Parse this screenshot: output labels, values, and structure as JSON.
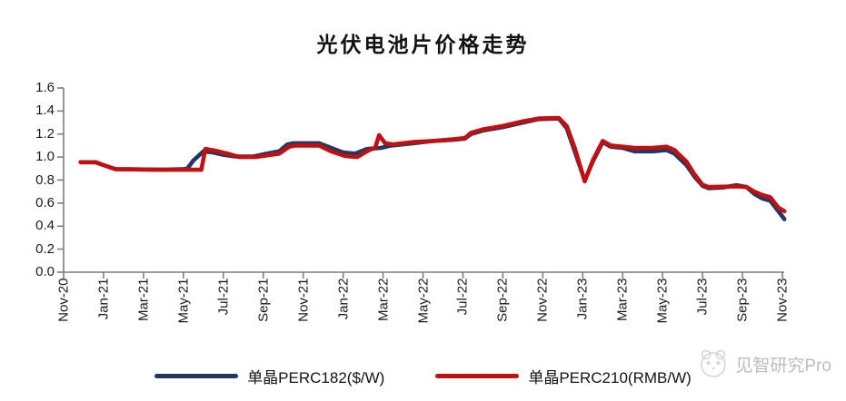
{
  "chart": {
    "title": "光伏电池片价格走势",
    "watermark": {
      "brand": "见智研究Pro",
      "logo": "panda-face-logo"
    }
  },
  "chart_data": {
    "type": "line",
    "title": "光伏电池片价格走势",
    "xlabel": "",
    "ylabel": "",
    "ylim": [
      0.0,
      1.6
    ],
    "y_tick_step": 0.2,
    "y_tick_labels": [
      "0.0",
      "0.2",
      "0.4",
      "0.6",
      "0.8",
      "1.0",
      "1.2",
      "1.4",
      "1.6"
    ],
    "x_tick_labels": [
      "Nov-20",
      "Jan-21",
      "Mar-21",
      "May-21",
      "Jul-21",
      "Sep-21",
      "Nov-21",
      "Jan-22",
      "Mar-22",
      "May-22",
      "Jul-22",
      "Sep-22",
      "Nov-22",
      "Jan-23",
      "Mar-23",
      "May-23",
      "Jul-23",
      "Sep-23",
      "Nov-23"
    ],
    "x_unit": "months_since_Nov-20",
    "x_range": [
      0,
      36
    ],
    "grid": false,
    "legend_position": "bottom",
    "series": [
      {
        "name": "单晶PERC182($/W)",
        "color": "#1f3864",
        "points": [
          [
            0.85,
            0.955
          ],
          [
            1.6,
            0.955
          ],
          [
            2.0,
            0.93
          ],
          [
            2.6,
            0.895
          ],
          [
            5.0,
            0.89
          ],
          [
            6.0,
            0.895
          ],
          [
            6.2,
            0.9
          ],
          [
            6.5,
            0.97
          ],
          [
            7.0,
            1.05
          ],
          [
            7.5,
            1.04
          ],
          [
            8.0,
            1.02
          ],
          [
            8.6,
            1.005
          ],
          [
            9.5,
            1.005
          ],
          [
            10.2,
            1.03
          ],
          [
            10.8,
            1.05
          ],
          [
            11.2,
            1.11
          ],
          [
            11.5,
            1.12
          ],
          [
            12.8,
            1.12
          ],
          [
            13.4,
            1.08
          ],
          [
            14.0,
            1.04
          ],
          [
            14.6,
            1.03
          ],
          [
            15.2,
            1.07
          ],
          [
            15.9,
            1.08
          ],
          [
            16.4,
            1.1
          ],
          [
            17.5,
            1.12
          ],
          [
            18.5,
            1.14
          ],
          [
            19.5,
            1.15
          ],
          [
            20.1,
            1.16
          ],
          [
            20.4,
            1.2
          ],
          [
            21.0,
            1.23
          ],
          [
            22.0,
            1.26
          ],
          [
            23.0,
            1.3
          ],
          [
            23.8,
            1.33
          ],
          [
            24.8,
            1.335
          ],
          [
            25.2,
            1.25
          ],
          [
            25.6,
            1.05
          ],
          [
            26.1,
            0.795
          ],
          [
            26.5,
            0.96
          ],
          [
            27.0,
            1.13
          ],
          [
            27.4,
            1.09
          ],
          [
            28.0,
            1.08
          ],
          [
            28.6,
            1.05
          ],
          [
            29.5,
            1.05
          ],
          [
            30.2,
            1.06
          ],
          [
            30.6,
            1.03
          ],
          [
            30.9,
            0.98
          ],
          [
            31.2,
            0.93
          ],
          [
            31.6,
            0.83
          ],
          [
            32.0,
            0.75
          ],
          [
            32.3,
            0.73
          ],
          [
            33.0,
            0.735
          ],
          [
            33.7,
            0.755
          ],
          [
            34.2,
            0.74
          ],
          [
            34.6,
            0.68
          ],
          [
            35.0,
            0.64
          ],
          [
            35.4,
            0.62
          ],
          [
            35.8,
            0.53
          ],
          [
            36.1,
            0.46
          ]
        ]
      },
      {
        "name": "单晶PERC210(RMB/W)",
        "color": "#c01010",
        "points": [
          [
            0.85,
            0.955
          ],
          [
            1.6,
            0.955
          ],
          [
            2.0,
            0.93
          ],
          [
            2.6,
            0.895
          ],
          [
            5.0,
            0.89
          ],
          [
            6.9,
            0.89
          ],
          [
            7.1,
            1.07
          ],
          [
            7.6,
            1.055
          ],
          [
            8.2,
            1.03
          ],
          [
            8.8,
            1.0
          ],
          [
            9.6,
            1.0
          ],
          [
            10.2,
            1.015
          ],
          [
            10.8,
            1.03
          ],
          [
            11.3,
            1.09
          ],
          [
            11.6,
            1.1
          ],
          [
            12.8,
            1.1
          ],
          [
            13.4,
            1.05
          ],
          [
            14.1,
            1.01
          ],
          [
            14.7,
            1.0
          ],
          [
            15.3,
            1.06
          ],
          [
            15.6,
            1.08
          ],
          [
            15.8,
            1.19
          ],
          [
            16.1,
            1.12
          ],
          [
            16.5,
            1.11
          ],
          [
            17.5,
            1.13
          ],
          [
            18.5,
            1.14
          ],
          [
            19.5,
            1.155
          ],
          [
            20.1,
            1.165
          ],
          [
            20.4,
            1.21
          ],
          [
            21.0,
            1.24
          ],
          [
            22.0,
            1.27
          ],
          [
            23.0,
            1.31
          ],
          [
            23.8,
            1.335
          ],
          [
            24.8,
            1.34
          ],
          [
            25.2,
            1.27
          ],
          [
            25.6,
            1.08
          ],
          [
            26.1,
            0.79
          ],
          [
            26.5,
            0.97
          ],
          [
            27.0,
            1.14
          ],
          [
            27.4,
            1.1
          ],
          [
            28.0,
            1.09
          ],
          [
            28.6,
            1.08
          ],
          [
            29.5,
            1.08
          ],
          [
            30.2,
            1.09
          ],
          [
            30.6,
            1.06
          ],
          [
            30.9,
            1.01
          ],
          [
            31.2,
            0.96
          ],
          [
            31.6,
            0.85
          ],
          [
            32.0,
            0.76
          ],
          [
            32.3,
            0.74
          ],
          [
            33.7,
            0.745
          ],
          [
            34.2,
            0.74
          ],
          [
            34.6,
            0.7
          ],
          [
            35.0,
            0.67
          ],
          [
            35.4,
            0.65
          ],
          [
            35.8,
            0.56
          ],
          [
            36.1,
            0.53
          ]
        ]
      }
    ]
  },
  "colors": {
    "background": "#ffffff",
    "axis": "#7f7f7f",
    "tick_label": "#1a1a1a",
    "title": "#111111",
    "watermark": "#bcbcbc"
  }
}
